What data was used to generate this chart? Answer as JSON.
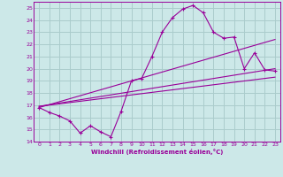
{
  "xlabel": "Windchill (Refroidissement éolien,°C)",
  "bg_color": "#cce8e8",
  "grid_color": "#aacccc",
  "line_color": "#990099",
  "xlim": [
    -0.5,
    23.5
  ],
  "ylim": [
    14,
    25.5
  ],
  "xticks": [
    0,
    1,
    2,
    3,
    4,
    5,
    6,
    7,
    8,
    9,
    10,
    11,
    12,
    13,
    14,
    15,
    16,
    17,
    18,
    19,
    20,
    21,
    22,
    23
  ],
  "yticks": [
    14,
    15,
    16,
    17,
    18,
    19,
    20,
    21,
    22,
    23,
    24,
    25
  ],
  "line1_x": [
    0,
    1,
    2,
    3,
    4,
    5,
    6,
    7,
    8,
    9,
    10,
    11,
    12,
    13,
    14,
    15,
    16,
    17,
    18,
    19,
    20,
    21,
    22,
    23
  ],
  "line1_y": [
    16.8,
    16.4,
    16.1,
    15.7,
    14.7,
    15.3,
    14.8,
    14.4,
    16.5,
    19.0,
    19.2,
    21.0,
    23.0,
    24.2,
    24.9,
    25.2,
    24.6,
    23.0,
    22.5,
    22.6,
    20.0,
    21.3,
    19.9,
    19.8
  ],
  "line2_x": [
    0,
    23
  ],
  "line2_y": [
    16.9,
    20.0
  ],
  "line3_x": [
    0,
    23
  ],
  "line3_y": [
    16.9,
    19.3
  ],
  "line4_x": [
    0,
    23
  ],
  "line4_y": [
    16.8,
    22.4
  ]
}
